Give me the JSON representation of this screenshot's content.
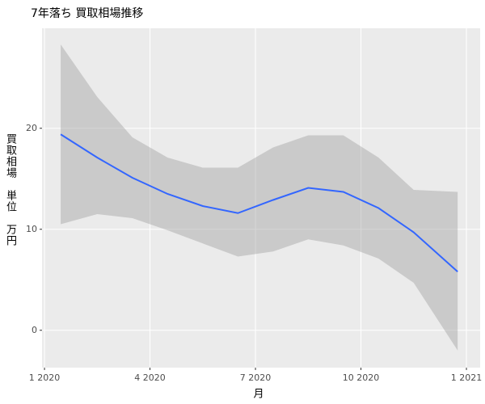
{
  "chart_data": {
    "type": "smooth",
    "title": "7年落ち 買取相場推移",
    "x_label": "月",
    "y_label": "買取相場　単位　万円",
    "x": [
      0.46,
      1.5,
      2.5,
      3.5,
      4.5,
      5.5,
      6.5,
      7.5,
      8.5,
      9.5,
      10.5,
      11.75
    ],
    "values": [
      19.4,
      17.1,
      15.1,
      13.5,
      12.3,
      11.6,
      12.9,
      14.1,
      13.7,
      12.1,
      9.7,
      5.8
    ],
    "upper": [
      28.3,
      23.1,
      19.1,
      17.1,
      16.1,
      16.1,
      18.1,
      19.3,
      19.3,
      17.1,
      13.9,
      13.7
    ],
    "lower": [
      10.5,
      11.5,
      11.1,
      9.9,
      8.6,
      7.3,
      7.8,
      9.0,
      8.4,
      7.1,
      4.7,
      -2.0
    ],
    "color": "#3366FF",
    "band_color": "#999999",
    "xlim": [
      -0.07,
      12.39
    ],
    "xticks": [
      {
        "value": 0,
        "label": "1 2020"
      },
      {
        "value": 3,
        "label": "4 2020"
      },
      {
        "value": 6,
        "label": "7 2020"
      },
      {
        "value": 9,
        "label": "10 2020"
      },
      {
        "value": 12,
        "label": "1 2021"
      }
    ],
    "ylim": [
      -3.7,
      29.9
    ],
    "yticks": [
      0,
      10,
      20
    ],
    "grid": true
  }
}
